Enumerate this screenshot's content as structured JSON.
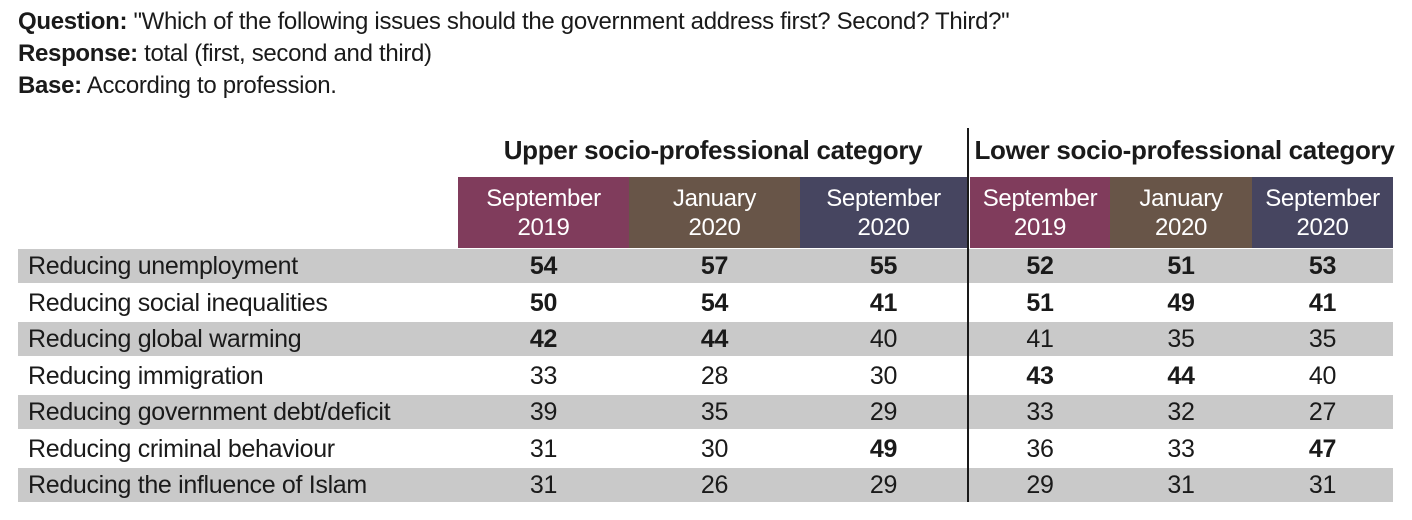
{
  "intro": {
    "question_label": "Question:",
    "question_text": " \"Which of the following issues should the government address first? Second? Third?\"",
    "response_label": "Response:",
    "response_text": " total (first, second and third)",
    "base_label": "Base:",
    "base_text": " According to profession."
  },
  "colors": {
    "september_2019": "#803c5c",
    "january_2020": "#685548",
    "september_2020": "#464560",
    "row_stripe": "#c9c9c9",
    "divider": "#1a1a1a"
  },
  "chart_data": {
    "type": "table",
    "column_groups": [
      {
        "label": "Upper socio-professional category"
      },
      {
        "label": "Lower socio-professional category"
      }
    ],
    "col_headers": [
      {
        "month": "September",
        "year": "2019",
        "color": "#803c5c",
        "group": "Upper socio-professional category"
      },
      {
        "month": "January",
        "year": "2020",
        "color": "#685548",
        "group": "Upper socio-professional category"
      },
      {
        "month": "September",
        "year": "2020",
        "color": "#464560",
        "group": "Upper socio-professional category"
      },
      {
        "month": "September",
        "year": "2019",
        "color": "#803c5c",
        "group": "Lower socio-professional category"
      },
      {
        "month": "January",
        "year": "2020",
        "color": "#685548",
        "group": "Lower socio-professional category"
      },
      {
        "month": "September",
        "year": "2020",
        "color": "#464560",
        "group": "Lower socio-professional category"
      }
    ],
    "rows": [
      {
        "label": "Reducing unemployment",
        "values": [
          {
            "v": "54",
            "b": true
          },
          {
            "v": "57",
            "b": true
          },
          {
            "v": "55",
            "b": true
          },
          {
            "v": "52",
            "b": true
          },
          {
            "v": "51",
            "b": true
          },
          {
            "v": "53",
            "b": true
          }
        ]
      },
      {
        "label": "Reducing social inequalities",
        "values": [
          {
            "v": "50",
            "b": true
          },
          {
            "v": "54",
            "b": true
          },
          {
            "v": "41",
            "b": true
          },
          {
            "v": "51",
            "b": true
          },
          {
            "v": "49",
            "b": true
          },
          {
            "v": "41",
            "b": true
          }
        ]
      },
      {
        "label": "Reducing global warming",
        "values": [
          {
            "v": "42",
            "b": true
          },
          {
            "v": "44",
            "b": true
          },
          {
            "v": "40",
            "b": false
          },
          {
            "v": "41",
            "b": false
          },
          {
            "v": "35",
            "b": false
          },
          {
            "v": "35",
            "b": false
          }
        ]
      },
      {
        "label": "Reducing immigration",
        "values": [
          {
            "v": "33",
            "b": false
          },
          {
            "v": "28",
            "b": false
          },
          {
            "v": "30",
            "b": false
          },
          {
            "v": "43",
            "b": true
          },
          {
            "v": "44",
            "b": true
          },
          {
            "v": "40",
            "b": false
          }
        ]
      },
      {
        "label": "Reducing government debt/deficit",
        "values": [
          {
            "v": "39",
            "b": false
          },
          {
            "v": "35",
            "b": false
          },
          {
            "v": "29",
            "b": false
          },
          {
            "v": "33",
            "b": false
          },
          {
            "v": "32",
            "b": false
          },
          {
            "v": "27",
            "b": false
          }
        ]
      },
      {
        "label": "Reducing criminal behaviour",
        "values": [
          {
            "v": "31",
            "b": false
          },
          {
            "v": "30",
            "b": false
          },
          {
            "v": "49",
            "b": true
          },
          {
            "v": "36",
            "b": false
          },
          {
            "v": "33",
            "b": false
          },
          {
            "v": "47",
            "b": true
          }
        ]
      },
      {
        "label": "Reducing the influence of Islam",
        "values": [
          {
            "v": "31",
            "b": false
          },
          {
            "v": "26",
            "b": false
          },
          {
            "v": "29",
            "b": false
          },
          {
            "v": "29",
            "b": false
          },
          {
            "v": "31",
            "b": false
          },
          {
            "v": "31",
            "b": false
          }
        ]
      }
    ]
  }
}
